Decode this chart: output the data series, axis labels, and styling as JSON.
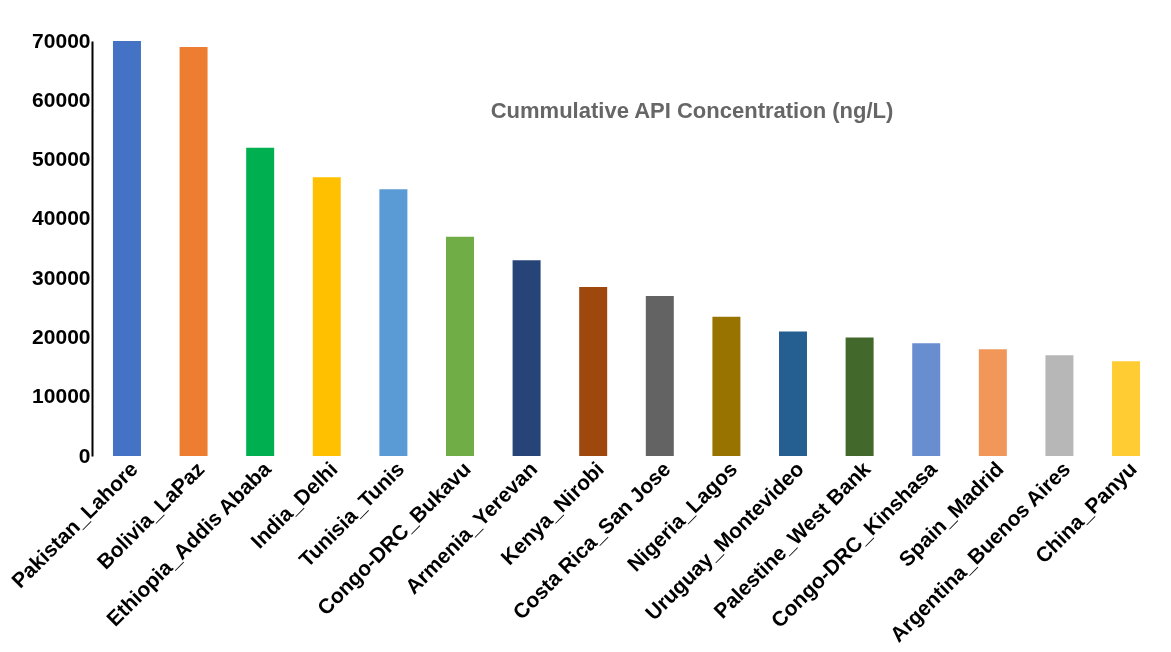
{
  "chart_data": {
    "type": "bar",
    "title": "Cummulative API Concentration (ng/L)",
    "categories": [
      "Pakistan_Lahore",
      "Bolivia_LaPaz",
      "Ethiopia_Addis Ababa",
      "India_Delhi",
      "Tunisia_Tunis",
      "Congo-DRC_Bukavu",
      "Armenia_Yerevan",
      "Kenya_Nirobi",
      "Costa Rica_San Jose",
      "Nigeria_Lagos",
      "Uruguay_Montevideo",
      "Palestine_West Bank",
      "Congo-DRC_Kinshasa",
      "Spain_Madrid",
      "Argentina_Buenos Aires",
      "China_Panyu"
    ],
    "values": [
      70000,
      69000,
      52000,
      47000,
      45000,
      37000,
      33000,
      28500,
      27000,
      23500,
      21000,
      20000,
      19000,
      18000,
      17000,
      16000
    ],
    "colors": [
      "#4472c4",
      "#ed7d31",
      "#00b050",
      "#ffc000",
      "#5b9bd5",
      "#70ad47",
      "#264478",
      "#9e480e",
      "#636363",
      "#997300",
      "#255e91",
      "#43682b",
      "#698ed0",
      "#f1975a",
      "#b7b7b7",
      "#ffcd33"
    ],
    "ylim": [
      0,
      70000
    ],
    "yticks": [
      0,
      10000,
      20000,
      30000,
      40000,
      50000,
      60000,
      70000
    ],
    "grid": false
  }
}
